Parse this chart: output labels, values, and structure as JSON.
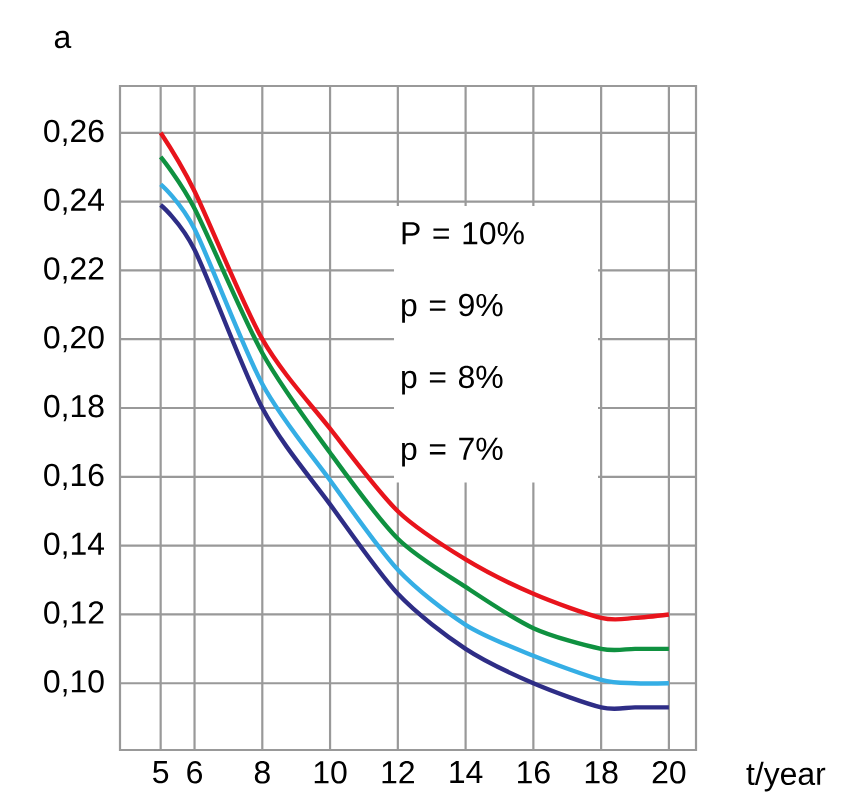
{
  "chart_data": {
    "type": "line",
    "xlabel": "t/year",
    "ylabel": "a",
    "x": [
      5,
      6,
      8,
      10,
      12,
      14,
      16,
      18,
      19,
      20
    ],
    "series": [
      {
        "color": "#e8141c",
        "values": [
          0.26,
          0.243,
          0.2,
          0.174,
          0.15,
          0.136,
          0.126,
          0.119,
          0.119,
          0.12
        ]
      },
      {
        "color": "#0f9140",
        "values": [
          0.253,
          0.238,
          0.196,
          0.167,
          0.142,
          0.128,
          0.116,
          0.11,
          0.11,
          0.11
        ]
      },
      {
        "color": "#35aee5",
        "values": [
          0.245,
          0.232,
          0.187,
          0.159,
          0.133,
          0.117,
          0.108,
          0.101,
          0.1,
          0.1
        ]
      },
      {
        "color": "#2e2d86",
        "values": [
          0.239,
          0.226,
          0.18,
          0.152,
          0.126,
          0.11,
          0.1,
          0.093,
          0.093,
          0.093
        ]
      }
    ],
    "annotations": [
      "P = 10%",
      "p = 9%",
      "p = 8%",
      "p = 7%"
    ],
    "xlim": [
      3.8,
      20.8
    ],
    "ylim": [
      0.0806,
      0.2736
    ],
    "xticks": [
      5,
      6,
      8,
      10,
      12,
      14,
      16,
      18,
      20
    ],
    "yticks": [
      {
        "value": 0.1,
        "label": "0,10"
      },
      {
        "value": 0.12,
        "label": "0,12"
      },
      {
        "value": 0.14,
        "label": "0,14"
      },
      {
        "value": 0.16,
        "label": "0,16"
      },
      {
        "value": 0.18,
        "label": "0,18"
      },
      {
        "value": 0.2,
        "label": "0,20"
      },
      {
        "value": 0.22,
        "label": "0,22"
      },
      {
        "value": 0.24,
        "label": "0,24"
      },
      {
        "value": 0.26,
        "label": "0,26"
      }
    ],
    "grid": true
  }
}
